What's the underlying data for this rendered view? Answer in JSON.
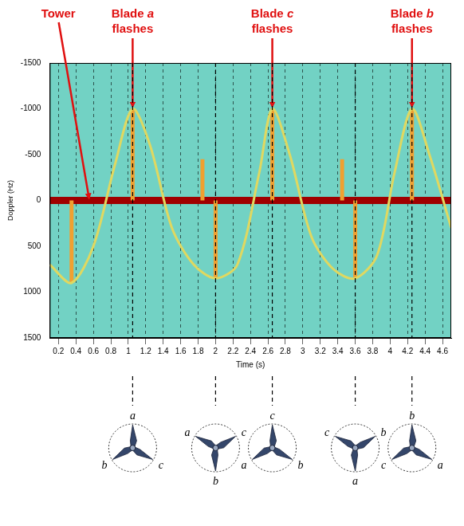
{
  "chart_data": {
    "type": "line",
    "x_label": "Time (s)",
    "y_label": "Doppler (Hz)",
    "xlim": [
      0.1,
      4.7
    ],
    "xticks": [
      0.2,
      0.4,
      0.6,
      0.8,
      1,
      1.2,
      1.4,
      1.6,
      1.8,
      2,
      2.2,
      2.4,
      2.6,
      2.8,
      3,
      3.2,
      3.4,
      3.6,
      3.8,
      4,
      4.2,
      4.4,
      4.6
    ],
    "ylim": [
      -1500,
      1500
    ],
    "yticks": [
      -1500,
      -1000,
      -500,
      0,
      500,
      1000,
      1500
    ],
    "grid": true,
    "series": [
      {
        "color": "#e0d860",
        "x": [
          0.1,
          0.35,
          0.6,
          0.85,
          1.05,
          1.25,
          1.5,
          1.75,
          2.0,
          2.25,
          2.5,
          2.65,
          2.85,
          3.1,
          3.35,
          3.6,
          3.85,
          4.05,
          4.25,
          4.45,
          4.7
        ],
        "values": [
          700,
          900,
          500,
          -400,
          -1000,
          -600,
          300,
          700,
          850,
          700,
          -300,
          -1000,
          -500,
          400,
          750,
          850,
          600,
          -300,
          -1000,
          -500,
          300
        ]
      },
      {
        "color": "#f0a030",
        "x": [
          0.35,
          0.35
        ],
        "values": [
          0,
          900
        ]
      },
      {
        "color": "#f0a030",
        "x": [
          1.05,
          1.05
        ],
        "values": [
          -1000,
          0
        ]
      },
      {
        "color": "#f0a030",
        "x": [
          1.85,
          1.85
        ],
        "values": [
          -450,
          0
        ]
      },
      {
        "color": "#f0a030",
        "x": [
          2.0,
          2.0
        ],
        "values": [
          0,
          850
        ]
      },
      {
        "color": "#f0a030",
        "x": [
          2.65,
          2.65
        ],
        "values": [
          -1000,
          0
        ]
      },
      {
        "color": "#f0a030",
        "x": [
          3.45,
          3.45
        ],
        "values": [
          -450,
          0
        ]
      },
      {
        "color": "#f0a030",
        "x": [
          3.6,
          3.6
        ],
        "values": [
          0,
          850
        ]
      },
      {
        "color": "#f0a030",
        "x": [
          4.25,
          4.25
        ],
        "values": [
          -1000,
          0
        ]
      },
      {
        "name": "Tower",
        "color": "#a00000",
        "x": [
          0.1,
          4.7
        ],
        "values": [
          0,
          0
        ]
      }
    ],
    "annotations": [
      {
        "text": "Tower",
        "x": 0.55,
        "y": 0
      },
      {
        "text": "Blade a flashes",
        "x": 1.05,
        "y": -1000
      },
      {
        "text": "Blade c flashes",
        "x": 2.65,
        "y": -1000
      },
      {
        "text": "Blade b flashes",
        "x": 4.25,
        "y": -1000
      }
    ]
  },
  "diagram": {
    "turbines": [
      {
        "x": 1.05,
        "angle": 90,
        "blades": [
          "a",
          "c",
          "b"
        ]
      },
      {
        "x": 2.0,
        "angle": -90,
        "blades": [
          "b",
          "a",
          "c"
        ]
      },
      {
        "x": 2.65,
        "angle": 90,
        "blades": [
          "c",
          "b",
          "a"
        ]
      },
      {
        "x": 3.6,
        "angle": -90,
        "blades": [
          "a",
          "c",
          "b"
        ]
      },
      {
        "x": 4.25,
        "angle": 90,
        "blades": [
          "b",
          "a",
          "c"
        ]
      }
    ]
  }
}
